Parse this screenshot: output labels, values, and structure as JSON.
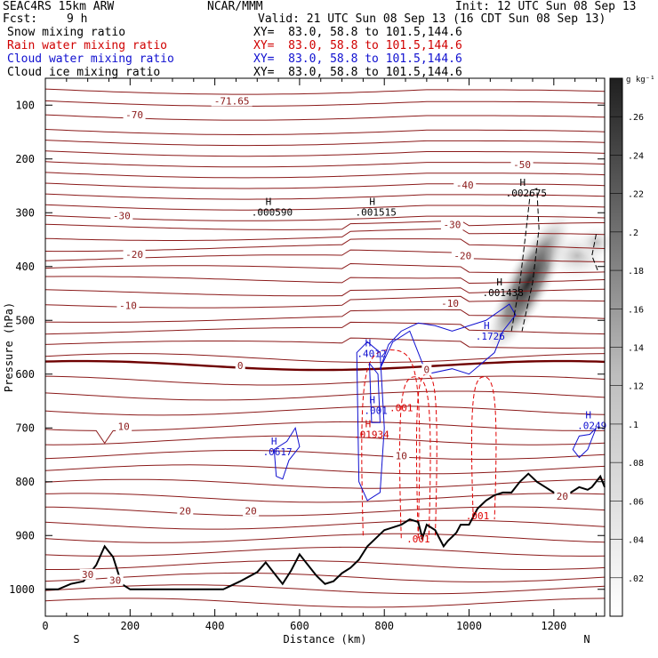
{
  "header": {
    "model": "SEAC4RS 15km ARW",
    "org": "NCAR/MMM",
    "init": "Init: 12 UTC Sun 08 Sep 13",
    "fcst_label": "Fcst:",
    "fcst_value": "9 h",
    "valid": "Valid: 21 UTC Sun 08 Sep 13 (16 CDT Sun 08 Sep 13)",
    "fields": [
      {
        "name": "Snow mixing ratio",
        "xy": "XY=  83.0, 58.8 to 101.5,144.6",
        "color": "#000000"
      },
      {
        "name": "Rain water mixing ratio",
        "xy": "XY=  83.0, 58.8 to 101.5,144.6",
        "color": "#d00000"
      },
      {
        "name": "Cloud water mixing ratio",
        "xy": "XY=  83.0, 58.8 to 101.5,144.6",
        "color": "#1010d0"
      },
      {
        "name": "Cloud ice mixing ratio",
        "xy": "XY=  83.0, 58.8 to 101.5,144.6",
        "color": "#000000"
      }
    ]
  },
  "chart_data": {
    "type": "cross-section",
    "xlabel": "Distance (km)",
    "ylabel": "Pressure (hPa)",
    "xlim": [
      0,
      1320
    ],
    "ylim": [
      1050,
      50
    ],
    "x_ticks": [
      0,
      200,
      400,
      600,
      800,
      1000,
      1200
    ],
    "y_ticks": [
      100,
      200,
      300,
      400,
      500,
      600,
      700,
      800,
      900,
      1000
    ],
    "direction_labels": {
      "left": "S",
      "right": "N"
    },
    "colorbar": {
      "unit": "g kg⁻¹",
      "ticks": [
        ".02",
        ".04",
        ".06",
        ".08",
        ".1",
        ".12",
        ".14",
        ".16",
        ".18",
        ".2",
        ".22",
        ".24",
        ".26"
      ],
      "values": [
        0.02,
        0.04,
        0.06,
        0.08,
        0.1,
        0.12,
        0.14,
        0.16,
        0.18,
        0.2,
        0.22,
        0.24,
        0.26
      ]
    },
    "temperature_labels": [
      {
        "text": "-71.65",
        "x": 440,
        "p": 92
      },
      {
        "text": "-70",
        "x": 210,
        "p": 118
      },
      {
        "text": "-50",
        "x": 1125,
        "p": 210
      },
      {
        "text": "-40",
        "x": 990,
        "p": 248
      },
      {
        "text": "-30",
        "x": 180,
        "p": 305
      },
      {
        "text": "-30",
        "x": 960,
        "p": 322
      },
      {
        "text": "-20",
        "x": 210,
        "p": 377
      },
      {
        "text": "-20",
        "x": 985,
        "p": 380
      },
      {
        "text": "-10",
        "x": 195,
        "p": 472
      },
      {
        "text": "-10",
        "x": 955,
        "p": 468
      },
      {
        "text": "0",
        "x": 460,
        "p": 584
      },
      {
        "text": "0",
        "x": 900,
        "p": 591
      },
      {
        "text": "10",
        "x": 185,
        "p": 697
      },
      {
        "text": "10",
        "x": 840,
        "p": 752
      },
      {
        "text": "20",
        "x": 330,
        "p": 854
      },
      {
        "text": "20",
        "x": 485,
        "p": 854
      },
      {
        "text": "20",
        "x": 1220,
        "p": 827
      },
      {
        "text": "30",
        "x": 100,
        "p": 972
      },
      {
        "text": "30",
        "x": 165,
        "p": 983
      }
    ],
    "maxima": [
      {
        "text": ".000590",
        "x": 535,
        "p": 305,
        "color": "#000000"
      },
      {
        "text": ".001515",
        "x": 780,
        "p": 305,
        "color": "#000000"
      },
      {
        "text": ".002675",
        "x": 1135,
        "p": 270,
        "color": "#000000"
      },
      {
        "text": ".001438",
        "x": 1080,
        "p": 455,
        "color": "#000000"
      },
      {
        "text": ".1726",
        "x": 1050,
        "p": 536,
        "color": "#1010d0"
      },
      {
        "text": ".4012",
        "x": 770,
        "p": 568,
        "color": "#1010d0"
      },
      {
        "text": ".001",
        "x": 780,
        "p": 674,
        "color": "#1010d0"
      },
      {
        "text": ".0617",
        "x": 548,
        "p": 751,
        "color": "#1010d0"
      },
      {
        "text": ".0249",
        "x": 1290,
        "p": 702,
        "color": "#1010d0"
      },
      {
        "text": ".01934",
        "x": 770,
        "p": 719,
        "color": "#d00000"
      }
    ],
    "rain_labels": [
      {
        "text": ".001",
        "x": 840,
        "p": 662
      },
      {
        "text": ".001",
        "x": 880,
        "p": 906
      },
      {
        "text": ".001",
        "x": 1020,
        "p": 863
      }
    ],
    "terrain": {
      "x": [
        0,
        30,
        60,
        90,
        120,
        140,
        160,
        180,
        200,
        220,
        260,
        300,
        340,
        380,
        420,
        460,
        500,
        520,
        560,
        580,
        600,
        620,
        640,
        660,
        680,
        700,
        720,
        740,
        760,
        780,
        800,
        820,
        840,
        860,
        880,
        890,
        900,
        920,
        940,
        950,
        970,
        980,
        1000,
        1020,
        1040,
        1060,
        1080,
        1100,
        1120,
        1140,
        1160,
        1180,
        1200,
        1220,
        1240,
        1260,
        1280,
        1290,
        1310,
        1320
      ],
      "p": [
        1000,
        1000,
        990,
        985,
        955,
        920,
        940,
        990,
        1000,
        1000,
        1000,
        1000,
        1000,
        1000,
        1000,
        985,
        968,
        950,
        990,
        965,
        935,
        955,
        975,
        990,
        985,
        970,
        960,
        945,
        920,
        905,
        890,
        885,
        880,
        870,
        875,
        905,
        880,
        890,
        920,
        910,
        895,
        880,
        880,
        850,
        835,
        825,
        820,
        820,
        800,
        785,
        800,
        810,
        820,
        825,
        820,
        810,
        815,
        810,
        790,
        810
      ]
    },
    "isotherms_p": [
      70,
      92,
      118,
      145,
      165,
      185,
      205,
      225,
      245,
      265,
      285,
      305,
      325,
      345,
      365,
      385,
      405,
      425,
      448,
      470,
      497,
      520,
      545,
      570,
      584,
      612,
      640,
      668,
      697,
      723,
      750,
      777,
      804,
      830,
      855,
      880,
      905,
      930,
      955,
      978,
      1000,
      1025
    ]
  }
}
